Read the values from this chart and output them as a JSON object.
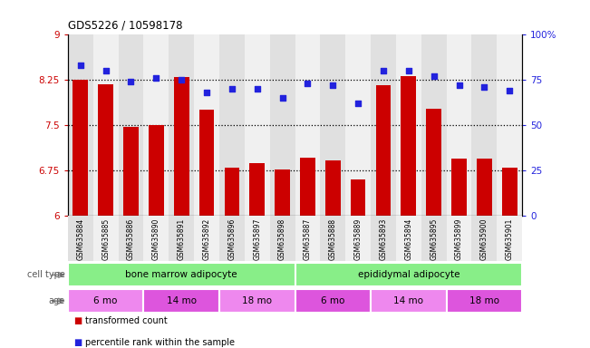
{
  "title": "GDS5226 / 10598178",
  "samples": [
    "GSM635884",
    "GSM635885",
    "GSM635886",
    "GSM635890",
    "GSM635891",
    "GSM635892",
    "GSM635896",
    "GSM635897",
    "GSM635898",
    "GSM635887",
    "GSM635888",
    "GSM635889",
    "GSM635893",
    "GSM635894",
    "GSM635895",
    "GSM635899",
    "GSM635900",
    "GSM635901"
  ],
  "bar_values": [
    8.25,
    8.18,
    7.47,
    7.5,
    8.3,
    7.76,
    6.8,
    6.87,
    6.76,
    6.97,
    6.92,
    6.6,
    8.17,
    8.32,
    7.78,
    6.95,
    6.95,
    6.8
  ],
  "dot_values": [
    83,
    80,
    74,
    76,
    75,
    68,
    70,
    70,
    65,
    73,
    72,
    62,
    80,
    80,
    77,
    72,
    71,
    69
  ],
  "bar_color": "#cc0000",
  "dot_color": "#2222dd",
  "ylim_left": [
    6,
    9
  ],
  "ylim_right": [
    0,
    100
  ],
  "yticks_left": [
    6,
    6.75,
    7.5,
    8.25,
    9
  ],
  "ytick_labels_left": [
    "6",
    "6.75",
    "7.5",
    "8.25",
    "9"
  ],
  "ytick_labels_right": [
    "0",
    "25",
    "50",
    "75",
    "100%"
  ],
  "yticks_right": [
    0,
    25,
    50,
    75,
    100
  ],
  "hlines": [
    6.75,
    7.5,
    8.25
  ],
  "cell_type_labels": [
    "bone marrow adipocyte",
    "epididymal adipocyte"
  ],
  "cell_type_split": 9,
  "cell_type_color": "#88ee88",
  "age_labels": [
    "6 mo",
    "14 mo",
    "18 mo",
    "6 mo",
    "14 mo",
    "18 mo"
  ],
  "age_splits": [
    0,
    3,
    6,
    9,
    12,
    15,
    18
  ],
  "age_color_even": "#ee88ee",
  "age_color_odd": "#dd55dd",
  "legend_items": [
    "transformed count",
    "percentile rank within the sample"
  ],
  "legend_colors": [
    "#cc0000",
    "#2222dd"
  ],
  "cell_type_label": "cell type",
  "age_label": "age",
  "col_bg_even": "#e0e0e0",
  "col_bg_odd": "#f0f0f0"
}
